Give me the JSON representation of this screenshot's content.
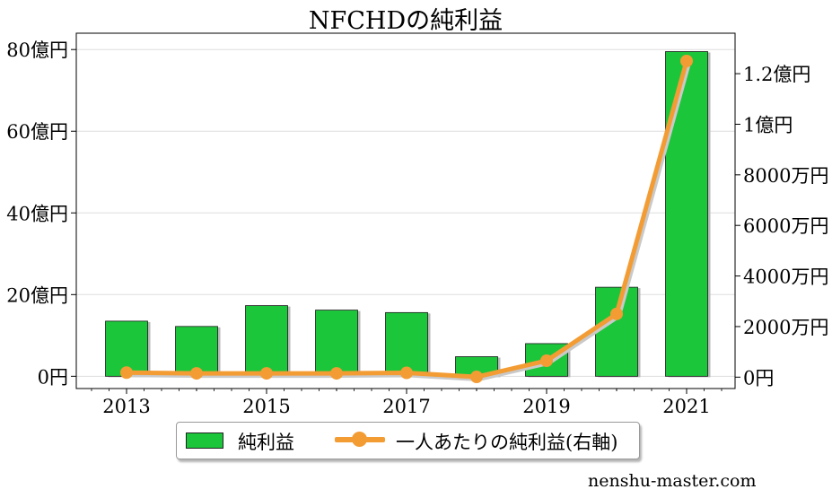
{
  "chart_data": {
    "type": "bar+line",
    "title": "NFCHDの純利益",
    "categories": [
      "2013",
      "2014",
      "2015",
      "2016",
      "2017",
      "2018",
      "2019",
      "2020",
      "2021"
    ],
    "x_tick_labels": [
      "2013",
      "2015",
      "2017",
      "2019",
      "2021"
    ],
    "series": [
      {
        "name": "純利益",
        "type": "bar",
        "axis": "left",
        "unit": "億円",
        "values": [
          13.5,
          12.2,
          17.3,
          16.2,
          15.6,
          4.8,
          8.0,
          21.8,
          79.5
        ]
      },
      {
        "name": "一人あたりの純利益(右軸)",
        "type": "line",
        "axis": "right",
        "unit": "万円",
        "values": [
          180,
          150,
          150,
          150,
          170,
          10,
          650,
          2500,
          12500
        ]
      }
    ],
    "left_axis": {
      "ylim": [
        -3,
        84
      ],
      "ticks": [
        0,
        20,
        40,
        60,
        80
      ],
      "tick_labels": [
        "0円",
        "20億円",
        "40億円",
        "60億円",
        "80億円"
      ]
    },
    "right_axis": {
      "ylim": [
        -450,
        13600
      ],
      "ticks": [
        0,
        2000,
        4000,
        6000,
        8000,
        10000,
        12000
      ],
      "tick_labels": [
        "0円",
        "2000万円",
        "4000万円",
        "6000万円",
        "8000万円",
        "1億円",
        "1.2億円"
      ]
    },
    "grid": true,
    "legend": {
      "placement": "bottom-center",
      "bar_label": "純利益",
      "line_label": "一人あたりの純利益(右軸)"
    },
    "colors": {
      "bar": "#1cc63b",
      "bar_edge": "#1a1a1a",
      "line": "#f39c34",
      "grid": "#dddddd"
    }
  },
  "watermark": "nenshu-master.com"
}
